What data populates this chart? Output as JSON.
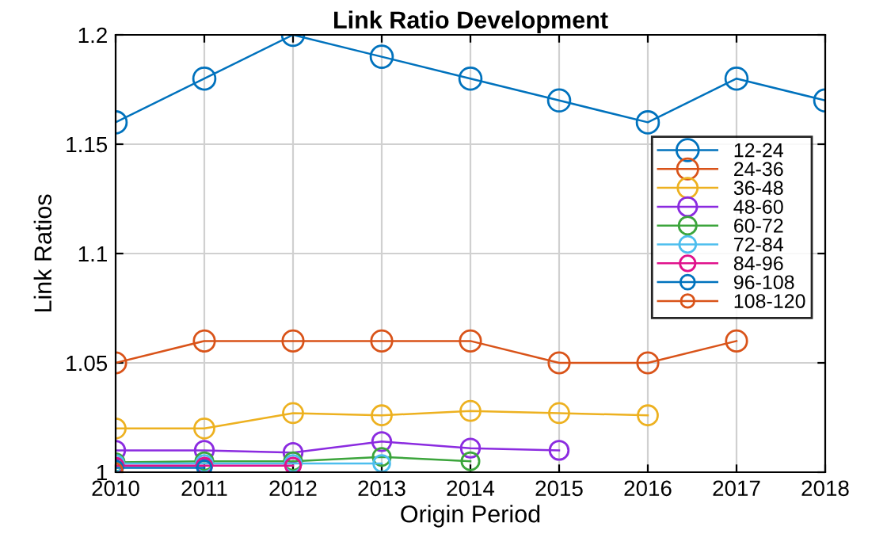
{
  "chart_data": {
    "type": "line",
    "title": "Link Ratio Development",
    "xlabel": "Origin Period",
    "ylabel": "Link Ratios",
    "x": [
      2010,
      2011,
      2012,
      2013,
      2014,
      2015,
      2016,
      2017,
      2018
    ],
    "series": [
      {
        "name": "12-24",
        "color": "#0072bd",
        "values": [
          1.16,
          1.18,
          1.2,
          1.19,
          1.18,
          1.17,
          1.16,
          1.18,
          1.17
        ]
      },
      {
        "name": "24-36",
        "color": "#d95319",
        "values": [
          1.05,
          1.06,
          1.06,
          1.06,
          1.06,
          1.05,
          1.05,
          1.06,
          null
        ]
      },
      {
        "name": "36-48",
        "color": "#edb120",
        "values": [
          1.02,
          1.02,
          1.027,
          1.026,
          1.028,
          1.027,
          1.026,
          null,
          null
        ]
      },
      {
        "name": "48-60",
        "color": "#8b2be0",
        "values": [
          1.01,
          1.01,
          1.009,
          1.014,
          1.011,
          1.01,
          null,
          null,
          null
        ]
      },
      {
        "name": "60-72",
        "color": "#3ca53c",
        "values": [
          1.0045,
          1.005,
          1.005,
          1.007,
          1.005,
          null,
          null,
          null,
          null
        ]
      },
      {
        "name": "72-84",
        "color": "#4dbeee",
        "values": [
          1.004,
          1.004,
          1.004,
          1.004,
          null,
          null,
          null,
          null,
          null
        ]
      },
      {
        "name": "84-96",
        "color": "#e0128c",
        "values": [
          1.003,
          1.003,
          1.003,
          null,
          null,
          null,
          null,
          null,
          null
        ]
      },
      {
        "name": "96-108",
        "color": "#0072bd",
        "values": [
          1.002,
          1.002,
          null,
          null,
          null,
          null,
          null,
          null,
          null
        ]
      },
      {
        "name": "108-120",
        "color": "#d95319",
        "values": [
          1.001,
          null,
          null,
          null,
          null,
          null,
          null,
          null,
          null
        ]
      }
    ],
    "xlim": [
      2010,
      2018
    ],
    "xticks": [
      2010,
      2011,
      2012,
      2013,
      2014,
      2015,
      2016,
      2017,
      2018
    ],
    "ylim": [
      1,
      1.2
    ],
    "yticks": [
      1,
      1.05,
      1.1,
      1.15,
      1.2
    ],
    "grid": true,
    "legend": "right",
    "marker": "circle",
    "line_style": "solid"
  }
}
